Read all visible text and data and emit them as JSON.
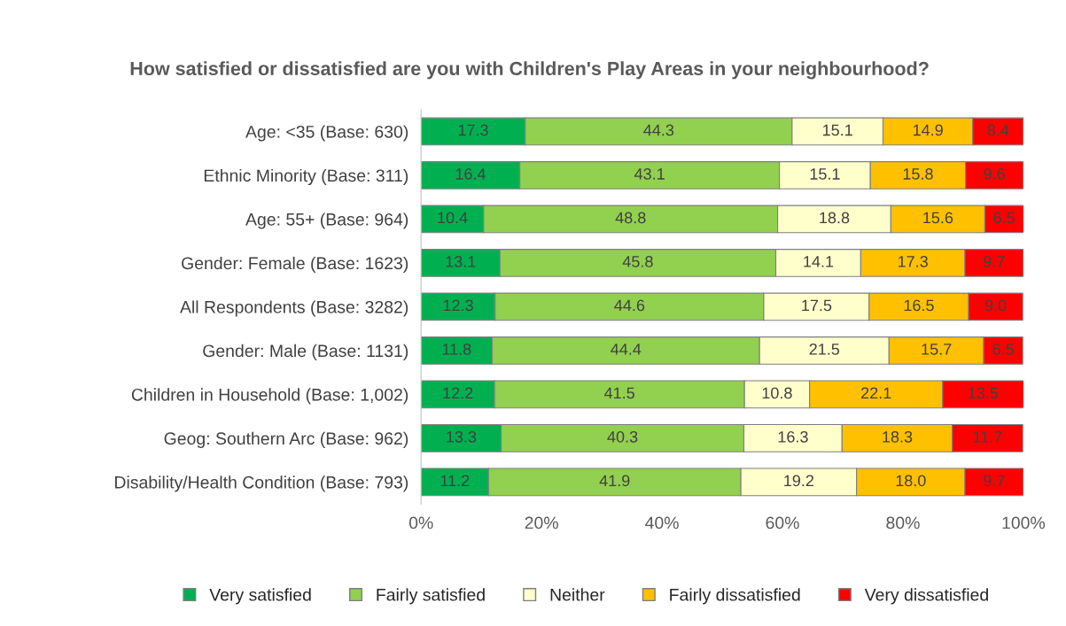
{
  "chart_data": {
    "type": "bar",
    "orientation": "horizontal",
    "stacked": true,
    "title": "How satisfied or dissatisfied are you with Children's Play Areas in your neighbourhood?",
    "categories": [
      "Age: <35 (Base: 630)",
      "Ethnic Minority (Base: 311)",
      "Age: 55+ (Base: 964)",
      "Gender: Female (Base: 1623)",
      "All Respondents (Base: 3282)",
      "Gender: Male (Base: 1131)",
      "Children in Household (Base: 1,002)",
      "Geog: Southern Arc (Base: 962)",
      "Disability/Health Condition (Base: 793)"
    ],
    "series": [
      {
        "name": "Very satisfied",
        "color": "#00b050",
        "values": [
          17.3,
          16.4,
          10.4,
          13.1,
          12.3,
          11.8,
          12.2,
          13.3,
          11.2
        ],
        "value_labels": [
          "17.3",
          "16.4",
          "10.4",
          "13.1",
          "12.3",
          "11.8",
          "12.2",
          "13.3",
          "11.2"
        ]
      },
      {
        "name": "Fairly satisfied",
        "color": "#92d050",
        "values": [
          44.3,
          43.1,
          48.8,
          45.8,
          44.6,
          44.4,
          41.5,
          40.3,
          41.9
        ],
        "value_labels": [
          "44.3",
          "43.1",
          "48.8",
          "45.8",
          "44.6",
          "44.4",
          "41.5",
          "40.3",
          "41.9"
        ]
      },
      {
        "name": "Neither",
        "color": "#ffffcc",
        "values": [
          15.1,
          15.1,
          18.8,
          14.1,
          17.5,
          21.5,
          10.8,
          16.3,
          19.2
        ],
        "value_labels": [
          "15.1",
          "15.1",
          "18.8",
          "14.1",
          "17.5",
          "21.5",
          "10.8",
          "16.3",
          "19.2"
        ]
      },
      {
        "name": "Fairly dissatisfied",
        "color": "#ffc000",
        "values": [
          14.9,
          15.8,
          15.6,
          17.3,
          16.5,
          15.7,
          22.1,
          18.3,
          18.0
        ],
        "value_labels": [
          "14.9",
          "15.8",
          "15.6",
          "17.3",
          "16.5",
          "15.7",
          "22.1",
          "18.3",
          "18.0"
        ]
      },
      {
        "name": "Very dissatisfied",
        "color": "#ff0000",
        "values": [
          8.4,
          9.6,
          6.5,
          9.7,
          9.0,
          6.5,
          13.5,
          11.7,
          9.7
        ],
        "value_labels": [
          "8.4",
          "9.6",
          "6.5",
          "9.7",
          "9.0",
          "6.5",
          "13.5",
          "11.7",
          "9.7"
        ]
      }
    ],
    "xlim": [
      0,
      100
    ],
    "xticks": [
      {
        "value": 0,
        "label": "0%"
      },
      {
        "value": 20,
        "label": "20%"
      },
      {
        "value": 40,
        "label": "40%"
      },
      {
        "value": 60,
        "label": "60%"
      },
      {
        "value": 80,
        "label": "80%"
      },
      {
        "value": 100,
        "label": "100%"
      }
    ],
    "legend": "bottom",
    "grid": false
  }
}
